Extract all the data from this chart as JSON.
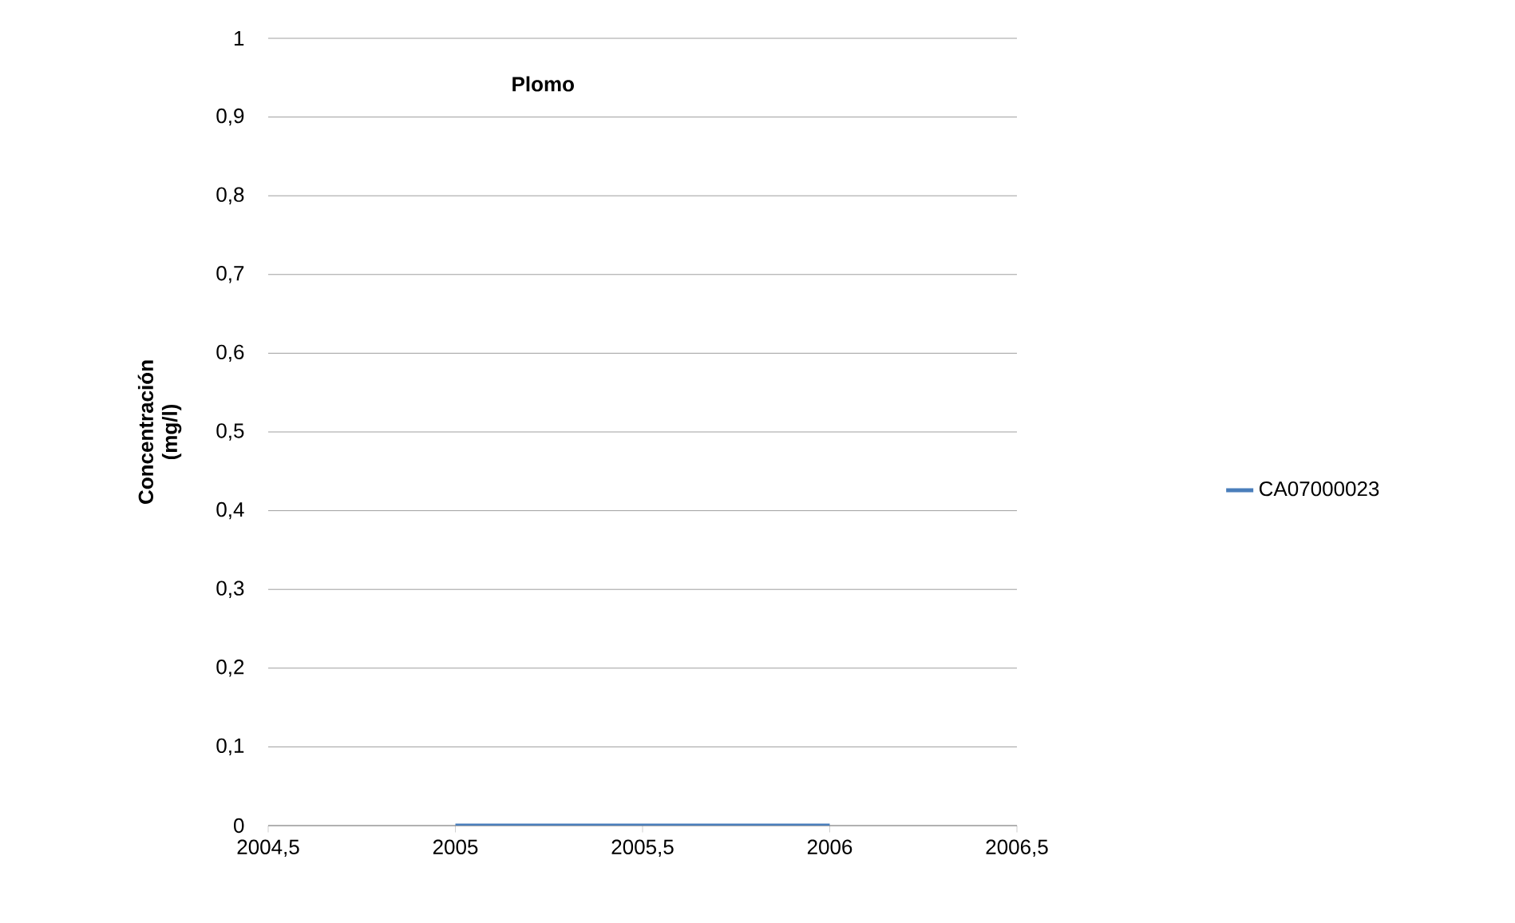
{
  "chart_data": {
    "type": "line",
    "title": "Plomo",
    "ylabel": "Concentración (mg/l)",
    "x": [
      2005,
      2006
    ],
    "series": [
      {
        "name": "CA07000023",
        "color": "#4a7ebb",
        "values": [
          0,
          0
        ]
      }
    ],
    "xlim": [
      2004.5,
      2006.5
    ],
    "xticks": [
      {
        "value": 2004.5,
        "label": "2004,5"
      },
      {
        "value": 2005,
        "label": "2005"
      },
      {
        "value": 2005.5,
        "label": "2005,5"
      },
      {
        "value": 2006,
        "label": "2006"
      },
      {
        "value": 2006.5,
        "label": "2006,5"
      }
    ],
    "ylim": [
      0,
      1
    ],
    "yticks": [
      {
        "value": 0,
        "label": "0"
      },
      {
        "value": 0.1,
        "label": "0,1"
      },
      {
        "value": 0.2,
        "label": "0,2"
      },
      {
        "value": 0.3,
        "label": "0,3"
      },
      {
        "value": 0.4,
        "label": "0,4"
      },
      {
        "value": 0.5,
        "label": "0,5"
      },
      {
        "value": 0.6,
        "label": "0,6"
      },
      {
        "value": 0.7,
        "label": "0,7"
      },
      {
        "value": 0.8,
        "label": "0,8"
      },
      {
        "value": 0.9,
        "label": "0,9"
      },
      {
        "value": 1,
        "label": "1"
      }
    ],
    "grid": "y",
    "legend": "right"
  }
}
